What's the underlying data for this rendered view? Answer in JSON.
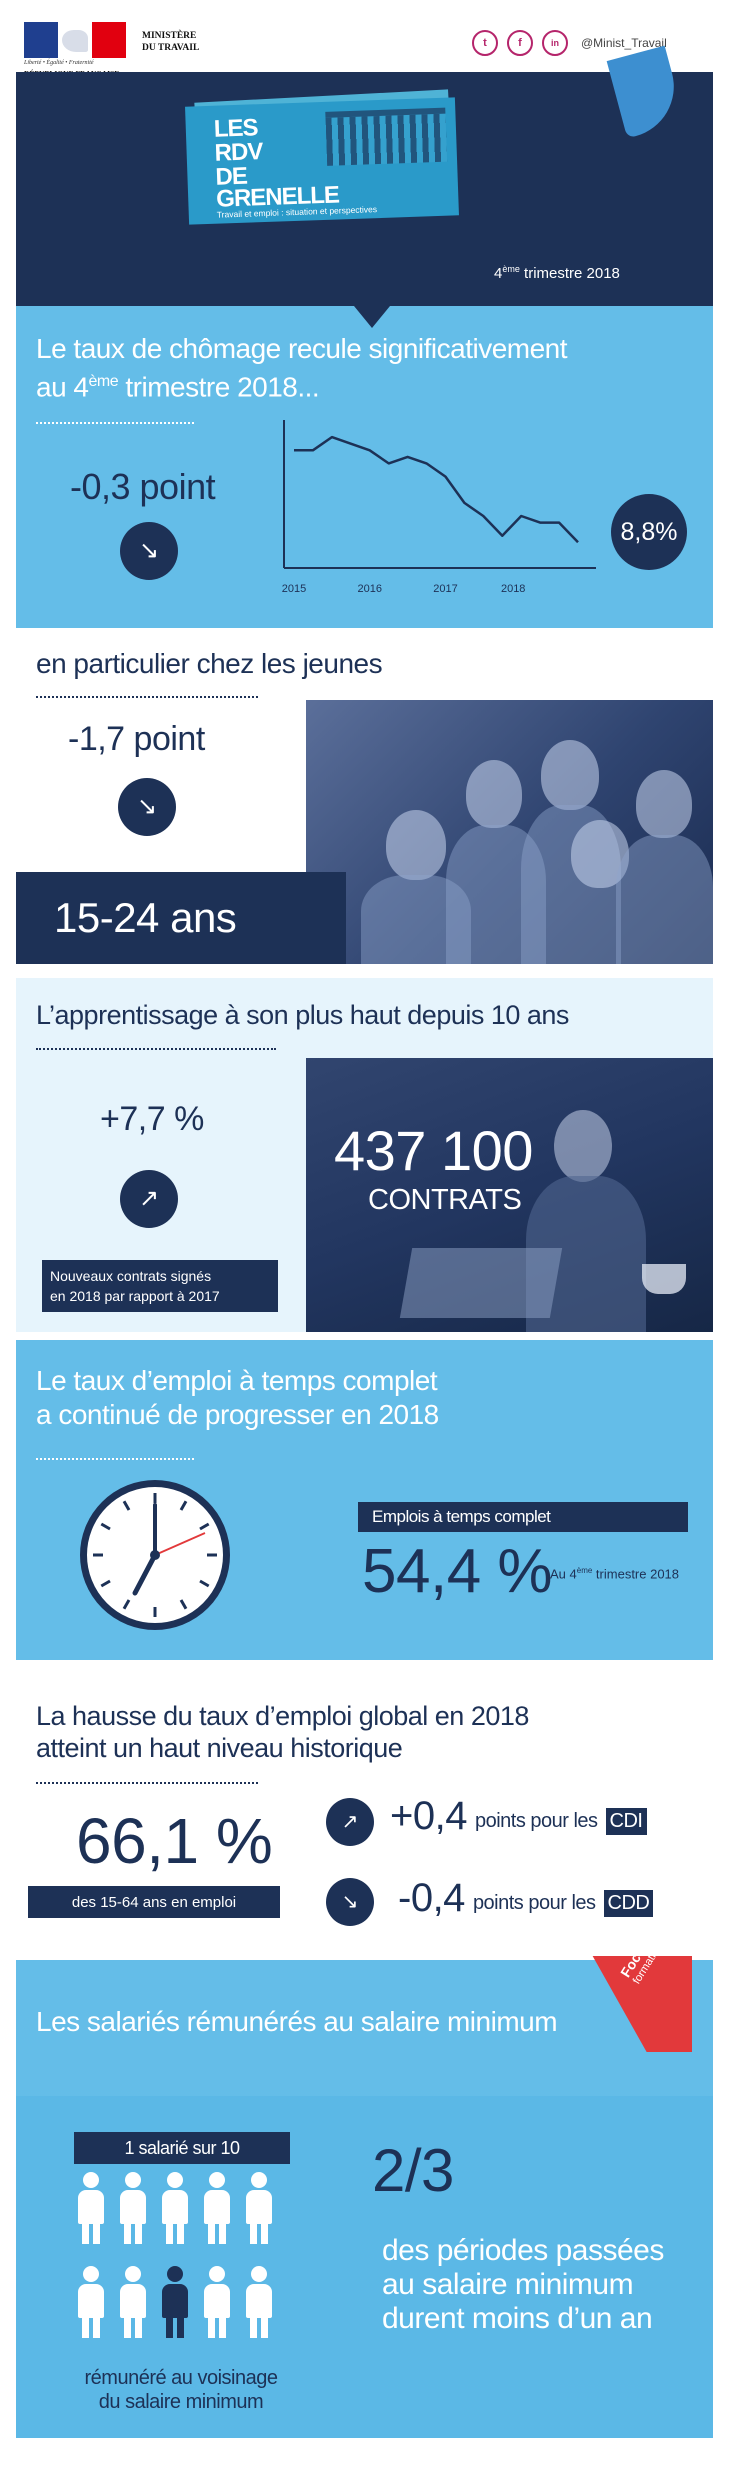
{
  "header": {
    "ministry_line1": "MINISTÈRE",
    "ministry_line2": "DU TRAVAIL",
    "motto": "Liberté • Égalité • Fraternité",
    "republic": "RÉPUBLIQUE FRANÇAISE",
    "social": {
      "twitter_glyph": "t",
      "facebook_glyph": "f",
      "linkedin_glyph": "in",
      "handle": "@Minist_Travail"
    }
  },
  "banner": {
    "logo_line1": "LES",
    "logo_line2": "RDV",
    "logo_line3": "DE",
    "logo_line4": "GRENELLE",
    "logo_subtitle": "Travail et emploi : situation et perspectives",
    "period_prefix": "4",
    "period_sup": "ème",
    "period_suffix": " trimestre 2018"
  },
  "unemployment": {
    "title_line1": "Le taux de chômage recule significativement",
    "title_line2_prefix": "au 4",
    "title_line2_sup": "ème",
    "title_line2_suffix": " trimestre 2018...",
    "change": "-0,3 point",
    "current": "8,8%"
  },
  "chart_data": {
    "type": "line",
    "categories": [
      "2015",
      "2016",
      "2017",
      "2018"
    ],
    "x": [
      2015.0,
      2015.25,
      2015.5,
      2015.75,
      2016.0,
      2016.25,
      2016.5,
      2016.75,
      2017.0,
      2017.25,
      2017.5,
      2017.75,
      2018.0,
      2018.25,
      2018.5,
      2018.75
    ],
    "values": [
      10.2,
      10.2,
      10.4,
      10.3,
      10.2,
      10.0,
      10.1,
      10.0,
      9.8,
      9.4,
      9.2,
      8.9,
      9.2,
      9.1,
      9.1,
      8.8
    ],
    "xlabel": "",
    "ylabel": "",
    "ylim": [
      8.5,
      10.6
    ],
    "grid": false
  },
  "youth": {
    "title": "en particulier chez les jeunes",
    "change": "-1,7 point",
    "age_group": "15-24 ans"
  },
  "apprenticeship": {
    "title": "L’apprentissage à son plus haut depuis 10 ans",
    "change": "+7,7 %",
    "note_line1": "Nouveaux contrats signés",
    "note_line2": "en 2018 par rapport à 2017",
    "count": "437 100",
    "count_label": "CONTRATS"
  },
  "fulltime": {
    "title_line1": "Le taux d’emploi à temps complet",
    "title_line2": "a continué de progresser en 2018",
    "tag": "Emplois à temps complet",
    "value": "54,4 %",
    "period_prefix": "Au 4",
    "period_sup": "ème",
    "period_suffix": " trimestre 2018"
  },
  "employment": {
    "title_line1": "La hausse du taux d’emploi global en 2018",
    "title_line2": "atteint un haut niveau historique",
    "rate": "66,1 %",
    "rate_caption": "des 15-64 ans en emploi",
    "cdi_value": "+0,4",
    "cdi_text": "points pour les",
    "cdi_label": "CDI",
    "cdd_value": "-0,4",
    "cdd_text": "points pour les",
    "cdd_label": "CDD"
  },
  "minimum_wage": {
    "title": "Les salariés rémunérés au salaire minimum",
    "focus_line1": "Focus",
    "focus_line2": "formation",
    "ratio_tag": "1 salarié sur 10",
    "caption_line1": "rémunéré au voisinage",
    "caption_line2": "du salaire minimum",
    "fraction": "2/3",
    "fraction_text_line1": "des périodes passées",
    "fraction_text_line2": "au salaire minimum",
    "fraction_text_line3": "durent moins d’un an"
  },
  "colors": {
    "navy": "#1d3156",
    "sky": "#64bde8",
    "pale": "#e6f4fc",
    "accent_red": "#e2393b",
    "social_magenta": "#b5256b"
  }
}
